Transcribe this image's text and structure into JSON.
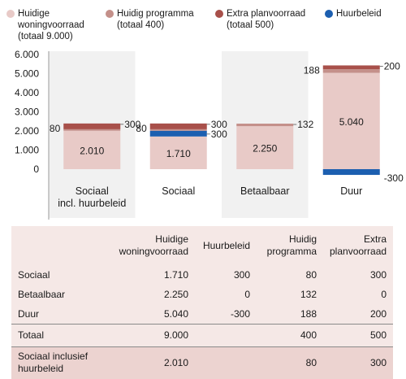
{
  "legend": {
    "items": [
      {
        "name": "Huidige woningvoorraad (totaal 9.000)",
        "lines": [
          "Huidige",
          "woningvoorraad",
          "(totaal 9.000)"
        ],
        "color": "#e8cac7"
      },
      {
        "name": "Huidig programma (totaal 400)",
        "lines": [
          "Huidig programma",
          "(totaal 400)"
        ],
        "color": "#c4908a"
      },
      {
        "name": "Extra planvoorraad (totaal 500)",
        "lines": [
          "Extra planvoorraad",
          "(totaal 500)"
        ],
        "color": "#a8504a"
      },
      {
        "name": "Huurbeleid",
        "lines": [
          "Huurbeleid"
        ],
        "color": "#1c5fb0"
      }
    ]
  },
  "chart_data": {
    "type": "bar",
    "stacked": true,
    "categories": [
      {
        "label_lines": [
          "Sociaal",
          "incl. huurbeleid"
        ]
      },
      {
        "label_lines": [
          "Sociaal"
        ]
      },
      {
        "label_lines": [
          "Betaalbaar"
        ]
      },
      {
        "label_lines": [
          "Duur"
        ]
      }
    ],
    "series": [
      {
        "name": "Huidige woningvoorraad",
        "values": [
          2010,
          1710,
          2250,
          5040
        ],
        "color": "#e8cac7"
      },
      {
        "name": "Huurbeleid",
        "values": [
          0,
          300,
          0,
          -300
        ],
        "color": "#1c5fb0"
      },
      {
        "name": "Huidig programma",
        "values": [
          80,
          80,
          132,
          188
        ],
        "color": "#c4908a"
      },
      {
        "name": "Extra planvoorraad",
        "values": [
          300,
          300,
          0,
          200
        ],
        "color": "#a8504a"
      }
    ],
    "data_labels": [
      {
        "inside": "2.010",
        "left": "80",
        "right": [
          "300"
        ]
      },
      {
        "inside": "1.710",
        "left": "80",
        "right": [
          "300",
          "300"
        ]
      },
      {
        "inside": "2.250",
        "left": "",
        "right": [
          "132"
        ]
      },
      {
        "inside": "5.040",
        "left": "188",
        "right": [
          "200"
        ],
        "below_right": "-300"
      }
    ],
    "y_ticks": [
      "6.000",
      "5.000",
      "4.000",
      "3.000",
      "2.000",
      "1.000",
      "0"
    ],
    "y_tick_values": [
      6000,
      5000,
      4000,
      3000,
      2000,
      1000,
      0
    ],
    "ylim": [
      -300,
      6000
    ],
    "grid": false
  },
  "table": {
    "headers": [
      [
        "Huidige",
        "woningvoorraad"
      ],
      [
        "Huurbeleid"
      ],
      [
        "Huidig",
        "programma"
      ],
      [
        "Extra",
        "planvoorraad"
      ]
    ],
    "rows": [
      {
        "label": "Sociaal",
        "cells": [
          "1.710",
          "300",
          "80",
          "300"
        ]
      },
      {
        "label": "Betaalbaar",
        "cells": [
          "2.250",
          "0",
          "132",
          "0"
        ]
      },
      {
        "label": "Duur",
        "cells": [
          "5.040",
          "-300",
          "188",
          "200"
        ]
      },
      {
        "label": "Totaal",
        "cells": [
          "9.000",
          "",
          "400",
          "500"
        ]
      },
      {
        "label": "Sociaal inclusief huurbeleid",
        "label_lines": [
          "Sociaal inclusief",
          "huurbeleid"
        ],
        "cells": [
          "2.010",
          "",
          "80",
          "300"
        ]
      }
    ],
    "colors": {
      "band": "#f5e8e6",
      "band_last": "#ecd3d0",
      "rule": "#8a8a8a"
    }
  }
}
